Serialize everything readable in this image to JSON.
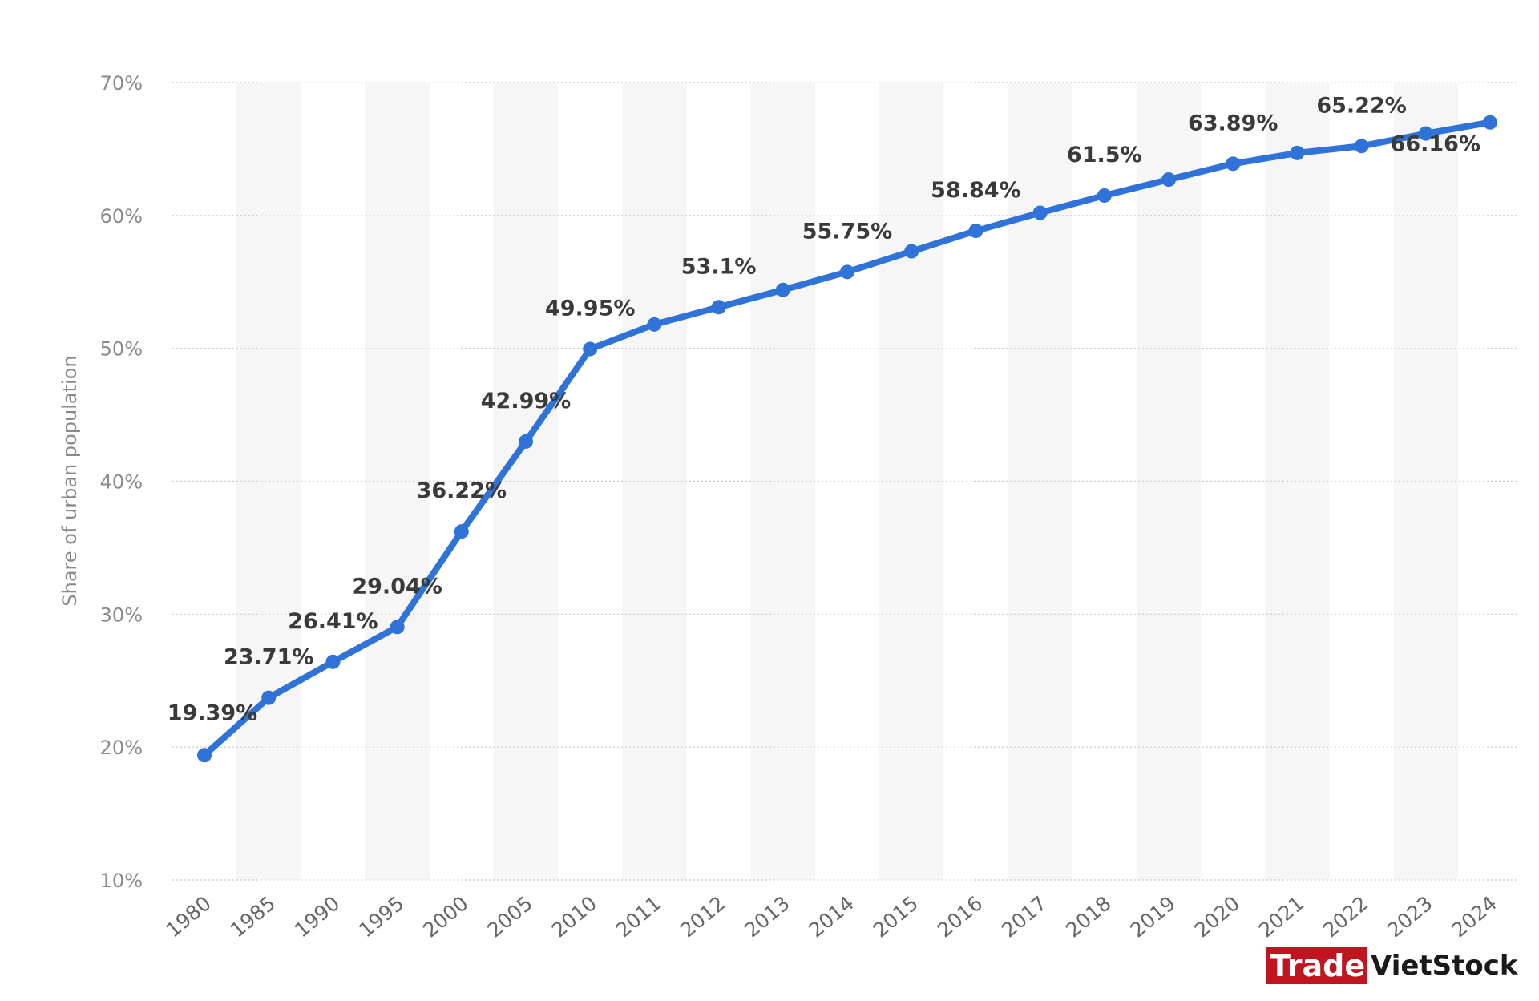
{
  "chart_data": {
    "type": "line",
    "x": [
      "1980",
      "1985",
      "1990",
      "1995",
      "2000",
      "2005",
      "2010",
      "2011",
      "2012",
      "2013",
      "2014",
      "2015",
      "2016",
      "2017",
      "2018",
      "2019",
      "2020",
      "2021",
      "2022",
      "2023",
      "2024"
    ],
    "series": [
      {
        "values": [
          19.39,
          23.71,
          26.41,
          29.04,
          36.22,
          42.99,
          49.95,
          51.8,
          53.1,
          54.4,
          55.75,
          57.3,
          58.84,
          60.2,
          61.5,
          62.7,
          63.89,
          64.7,
          65.22,
          66.16,
          67.0
        ],
        "data_labels": [
          "19.39%",
          "23.71%",
          "26.41%",
          "29.04%",
          "36.22%",
          "42.99%",
          "49.95%",
          "",
          "53.1%",
          "",
          "55.75%",
          "",
          "58.84%",
          "",
          "61.5%",
          "",
          "63.89%",
          "",
          "65.22%",
          "66.16%",
          ""
        ]
      }
    ],
    "ylabel": "Share of urban population",
    "yticks": [
      "10%",
      "20%",
      "30%",
      "40%",
      "50%",
      "60%",
      "70%"
    ],
    "ylim": [
      10,
      70
    ],
    "grid": true,
    "line_color": "#2f73d8"
  },
  "watermark": {
    "part1": "Trade",
    "part2": "VietStock",
    "part1_bg": "#c0151f"
  }
}
